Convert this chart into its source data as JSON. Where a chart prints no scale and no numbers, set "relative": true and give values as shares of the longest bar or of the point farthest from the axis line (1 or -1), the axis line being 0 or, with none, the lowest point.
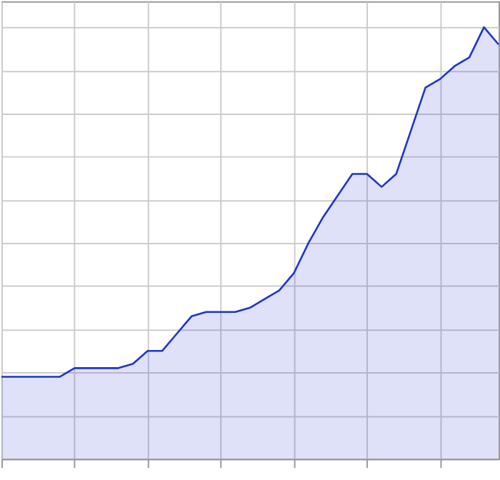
{
  "chart_data": {
    "type": "area",
    "relative": true,
    "grid": true,
    "categories": [
      null,
      null,
      null,
      null,
      null,
      null,
      null,
      null,
      null,
      null,
      null,
      null,
      null,
      null,
      null,
      null,
      null,
      null,
      null,
      null,
      null,
      null,
      null,
      null,
      null,
      null,
      null,
      null,
      null,
      null,
      null,
      null,
      null,
      null,
      null
    ],
    "series": [
      {
        "color": "#1f35c8",
        "values": [
          0.19,
          0.19,
          0.19,
          0.19,
          0.19,
          0.21,
          0.21,
          0.21,
          0.21,
          0.22,
          0.25,
          0.25,
          0.29,
          0.33,
          0.34,
          0.34,
          0.34,
          0.35,
          0.37,
          0.39,
          0.43,
          0.5,
          0.56,
          0.61,
          0.66,
          0.66,
          0.63,
          0.66,
          0.76,
          0.86,
          0.88,
          0.91,
          0.93,
          1,
          0.96
        ]
      }
    ]
  }
}
